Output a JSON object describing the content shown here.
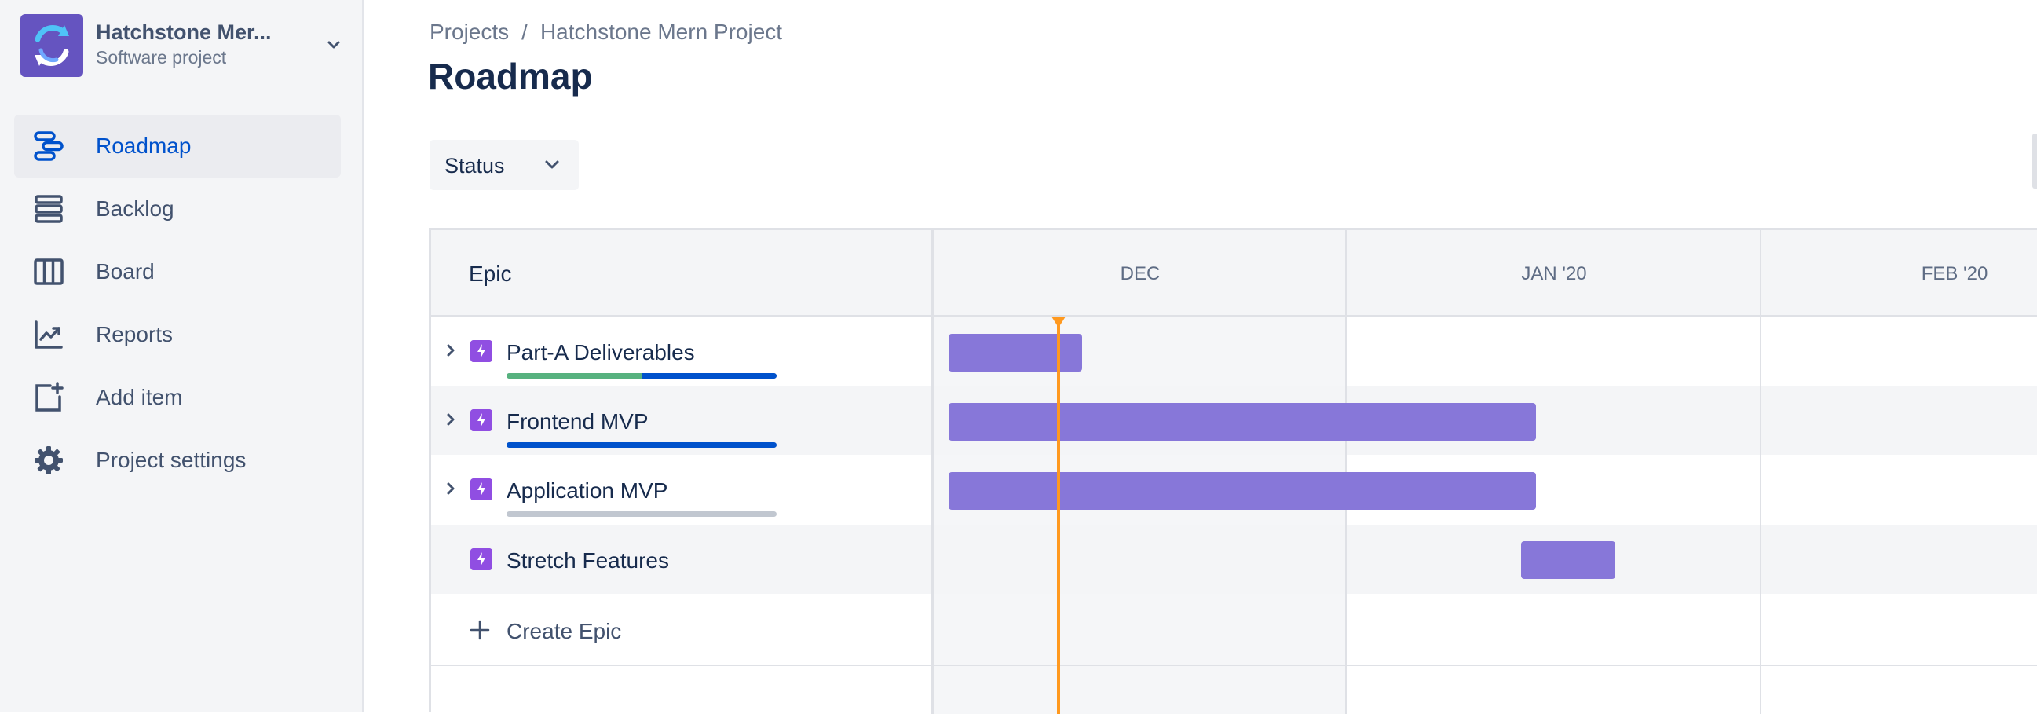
{
  "project": {
    "name": "Hatchstone Mer...",
    "type": "Software project",
    "avatar_color": "#6554c0"
  },
  "nav": [
    {
      "label": "Roadmap",
      "icon": "roadmap-icon",
      "active": true
    },
    {
      "label": "Backlog",
      "icon": "backlog-icon",
      "active": false
    },
    {
      "label": "Board",
      "icon": "board-icon",
      "active": false
    },
    {
      "label": "Reports",
      "icon": "reports-icon",
      "active": false
    },
    {
      "label": "Add item",
      "icon": "add-item-icon",
      "active": false
    },
    {
      "label": "Project settings",
      "icon": "gear-icon",
      "active": false
    }
  ],
  "breadcrumb": {
    "root": "Projects",
    "separator": "/",
    "current": "Hatchstone Mern Project"
  },
  "page": {
    "title": "Roadmap"
  },
  "filters": {
    "status_label": "Status"
  },
  "roadmap": {
    "epic_header": "Epic",
    "months": [
      "DEC",
      "JAN '20",
      "FEB '20"
    ],
    "epics": [
      {
        "name": "Part-A Deliverables",
        "expandable": true,
        "progress": {
          "done": 0.5,
          "in_progress": 0.5
        }
      },
      {
        "name": "Frontend MVP",
        "expandable": true,
        "progress": {
          "done": 0,
          "in_progress": 1.0
        }
      },
      {
        "name": "Application MVP",
        "expandable": true,
        "progress": {
          "done": 0,
          "in_progress": 0
        }
      },
      {
        "name": "Stretch Features",
        "expandable": false,
        "progress": null
      }
    ],
    "create_label": "Create Epic"
  },
  "colors": {
    "accent": "#0052cc",
    "epic": "#904ee2",
    "bar": "#8777d9",
    "today": "#ff991f",
    "done": "#57b27f",
    "in_progress": "#0052cc",
    "todo": "#c1c7d0"
  }
}
